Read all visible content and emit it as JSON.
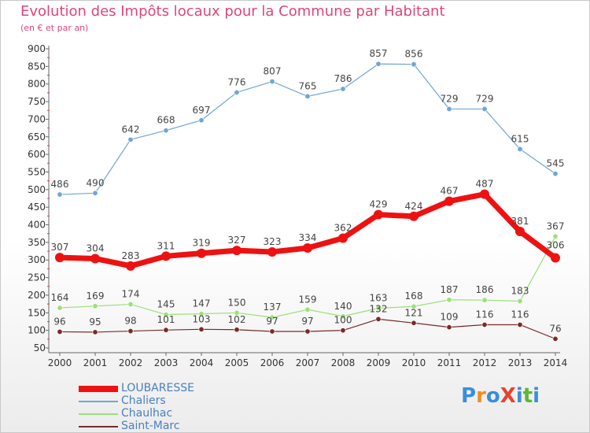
{
  "title": "Evolution des Impôts locaux pour la Commune par Habitant",
  "subtitle": "(en € et par an)",
  "logo": {
    "text": "ProXiti",
    "colors": [
      "#3a8fd8",
      "#f28c1e",
      "#3a8fd8",
      "#e8432f",
      "#3a8fd8",
      "#5cb833",
      "#3a8fd8"
    ]
  },
  "chart_data": {
    "type": "line",
    "x": [
      "2000",
      "2001",
      "2002",
      "2003",
      "2004",
      "2005",
      "2006",
      "2007",
      "2008",
      "2009",
      "2010",
      "2011",
      "2012",
      "2013",
      "2014"
    ],
    "ylim": [
      50,
      900
    ],
    "yticks": [
      50,
      100,
      150,
      200,
      250,
      300,
      350,
      400,
      450,
      500,
      550,
      600,
      650,
      700,
      750,
      800,
      850,
      900
    ],
    "grid": false,
    "legend_position": "bottom-left",
    "series": [
      {
        "name": "LOUBARESSE",
        "color": "#ee1111",
        "width": "thick",
        "values": [
          307,
          304,
          283,
          311,
          319,
          327,
          323,
          334,
          362,
          429,
          424,
          467,
          487,
          381,
          306
        ]
      },
      {
        "name": "Chaliers",
        "color": "#6fa6d6",
        "width": "thin",
        "values": [
          486,
          490,
          642,
          668,
          697,
          776,
          807,
          765,
          786,
          857,
          856,
          729,
          729,
          615,
          545
        ]
      },
      {
        "name": "Chaulhac",
        "color": "#9de07a",
        "width": "thin",
        "values": [
          164,
          169,
          174,
          145,
          147,
          150,
          137,
          159,
          140,
          163,
          168,
          187,
          186,
          183,
          367
        ]
      },
      {
        "name": "Saint-Marc",
        "color": "#7a2a2a",
        "width": "thin",
        "values": [
          96,
          95,
          98,
          101,
          103,
          102,
          97,
          97,
          100,
          132,
          121,
          109,
          116,
          116,
          76
        ]
      }
    ]
  }
}
